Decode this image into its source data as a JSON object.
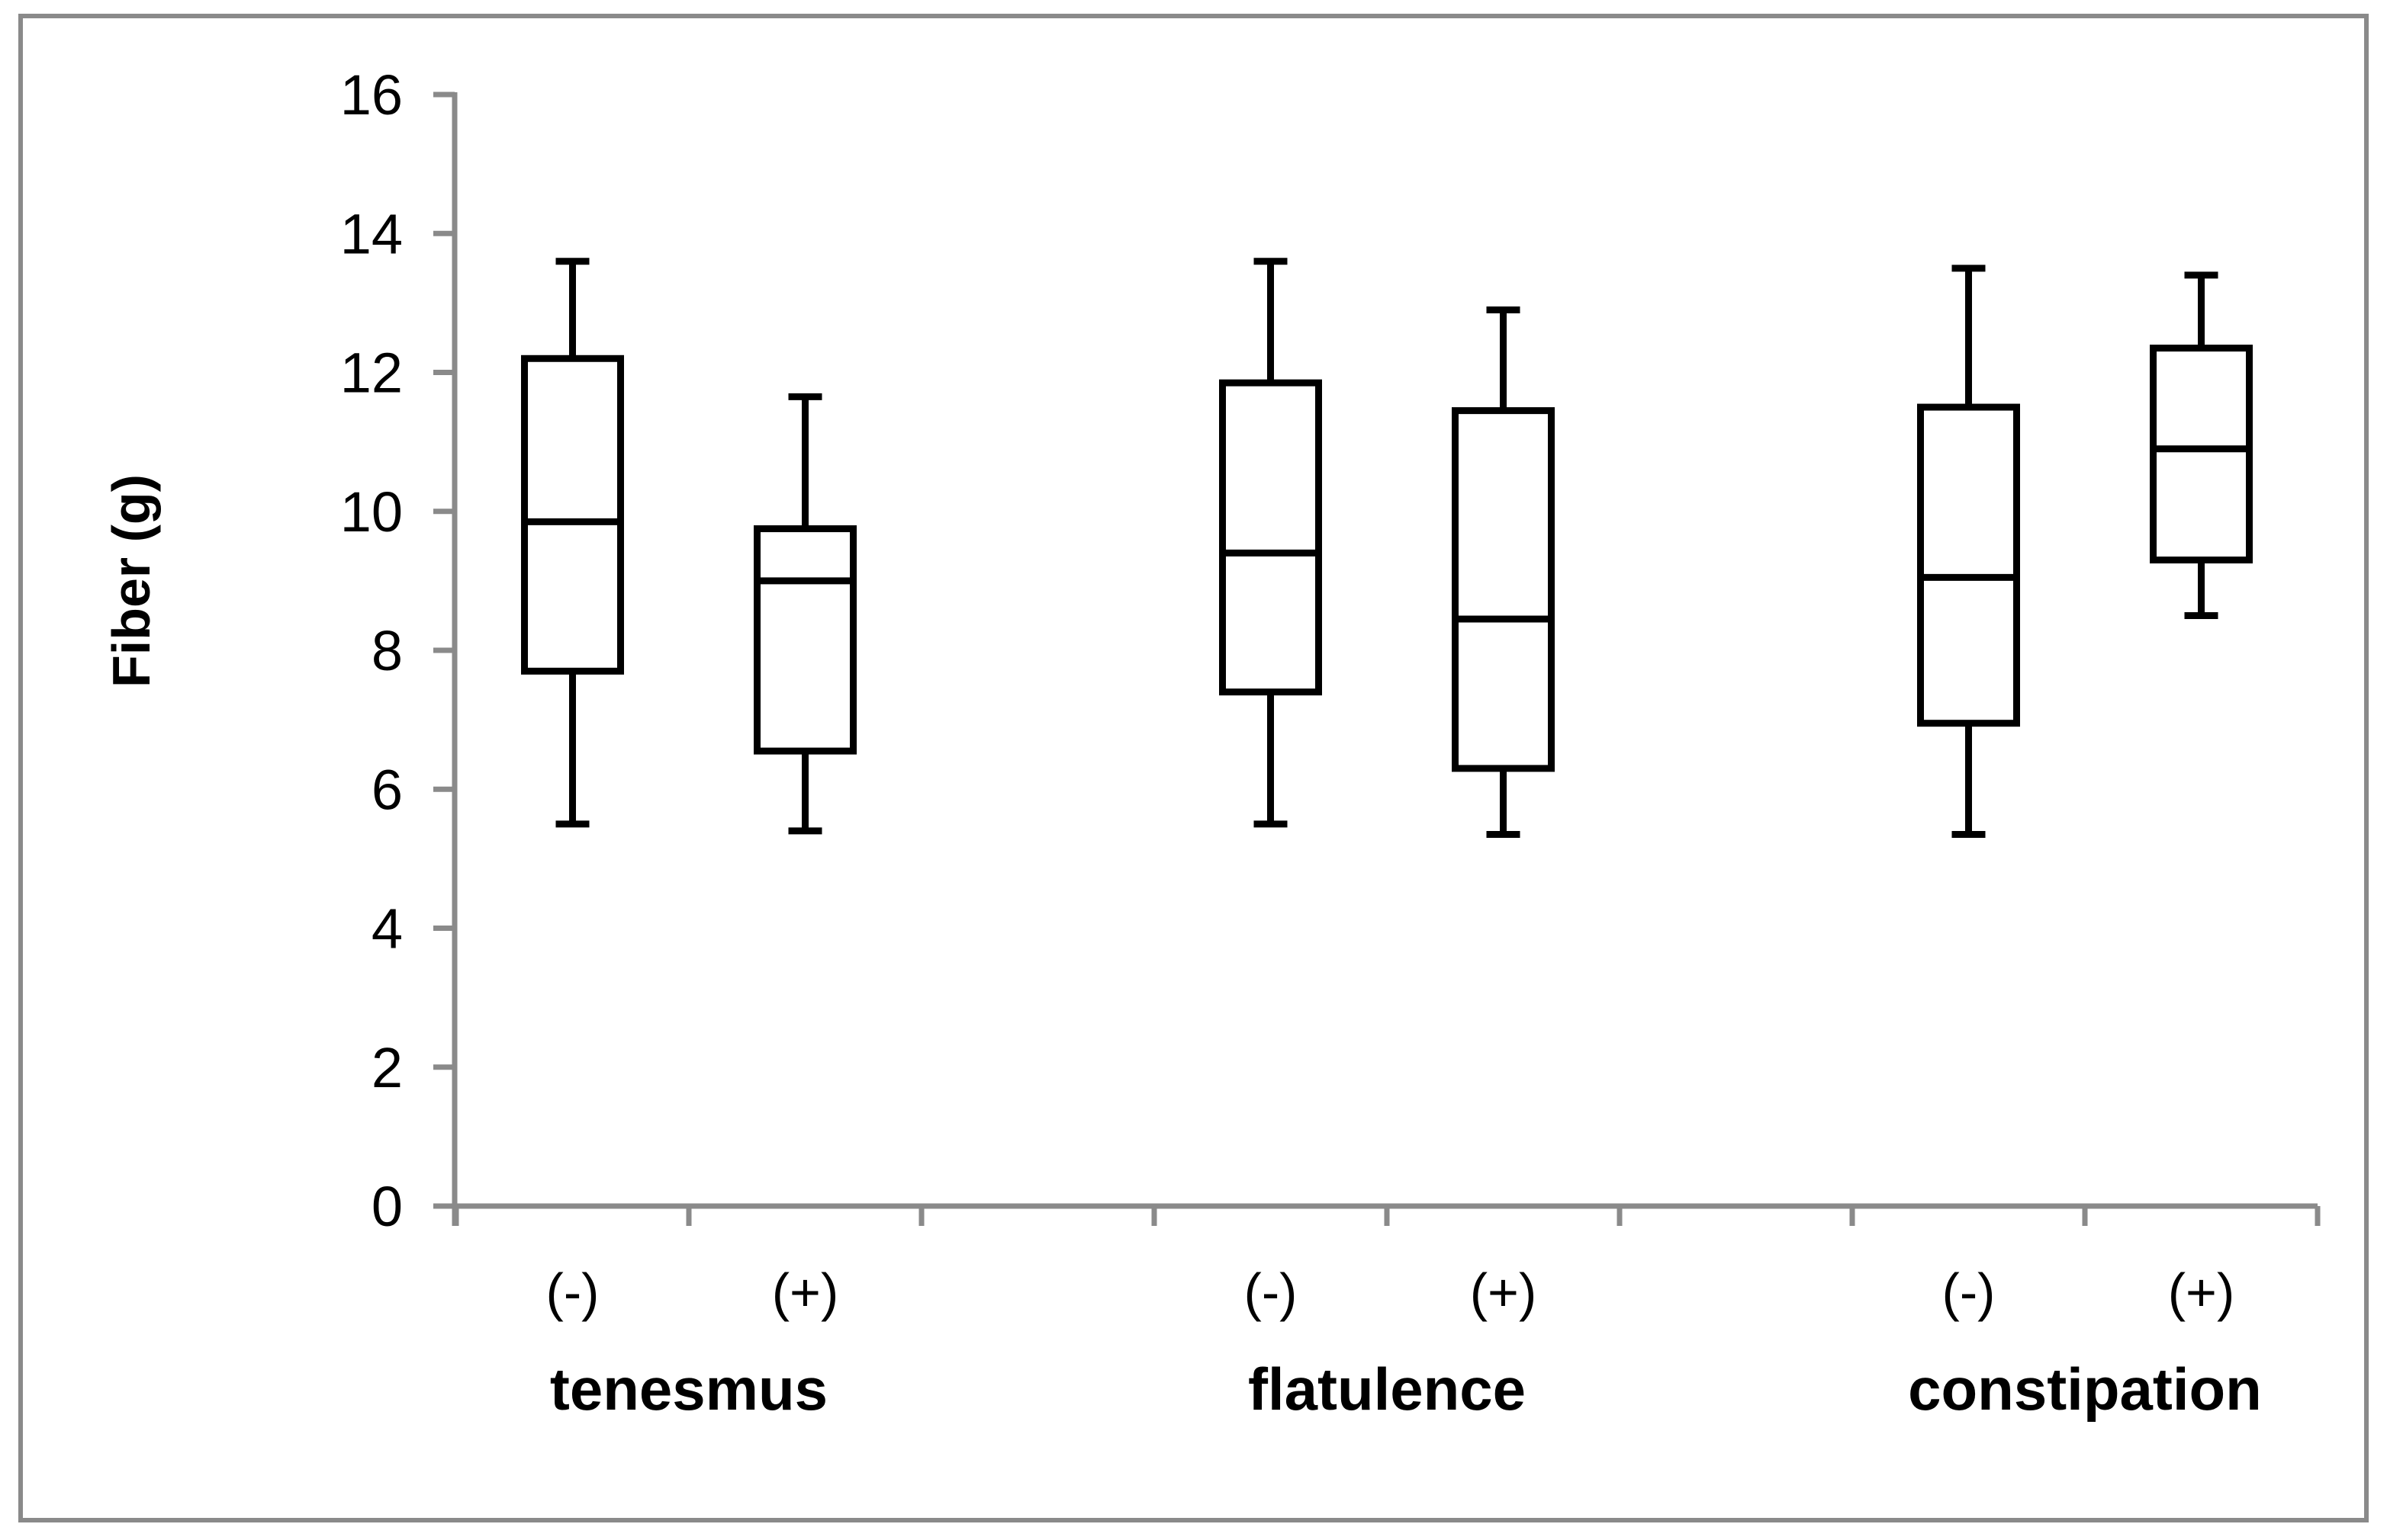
{
  "figure": {
    "background": "#ffffff",
    "border_color": "#8a8a8a",
    "axis_color": "#8a8a8a",
    "box_color": "#000000",
    "text_color": "#000000"
  },
  "chart_data": {
    "type": "boxplot",
    "title": "",
    "ylabel": "Fiber (g)",
    "xlabel": "",
    "ylim": [
      0,
      16
    ],
    "yticks": [
      0,
      2,
      4,
      6,
      8,
      10,
      12,
      14,
      16
    ],
    "grid": false,
    "legend": "none",
    "groups": [
      {
        "label": "tenesmus",
        "boxes": [
          {
            "label": "(-)",
            "whisker_low": 5.5,
            "q1": 7.7,
            "median": 9.85,
            "q3": 12.2,
            "whisker_high": 13.6
          },
          {
            "label": "(+)",
            "whisker_low": 5.4,
            "q1": 6.55,
            "median": 9.0,
            "q3": 9.75,
            "whisker_high": 11.65
          }
        ]
      },
      {
        "label": "flatulence",
        "boxes": [
          {
            "label": "(-)",
            "whisker_low": 5.5,
            "q1": 7.4,
            "median": 9.4,
            "q3": 11.85,
            "whisker_high": 13.6
          },
          {
            "label": "(+)",
            "whisker_low": 5.35,
            "q1": 6.3,
            "median": 8.45,
            "q3": 11.45,
            "whisker_high": 12.9
          }
        ]
      },
      {
        "label": "constipation",
        "boxes": [
          {
            "label": "(-)",
            "whisker_low": 5.35,
            "q1": 6.95,
            "median": 9.05,
            "q3": 11.5,
            "whisker_high": 13.5
          },
          {
            "label": "(+)",
            "whisker_low": 8.5,
            "q1": 9.3,
            "median": 10.9,
            "q3": 12.35,
            "whisker_high": 13.4
          }
        ]
      }
    ]
  }
}
